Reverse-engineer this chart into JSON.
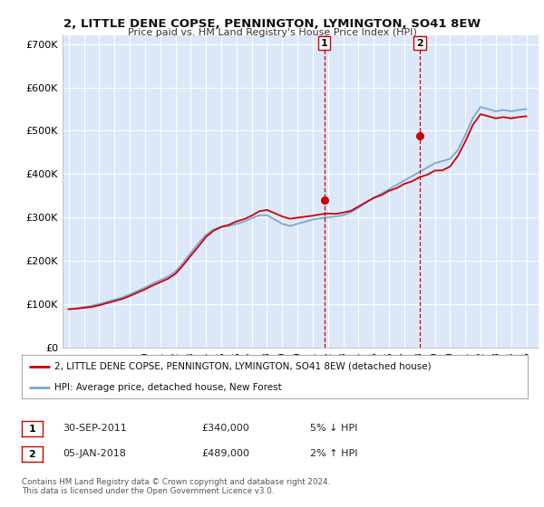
{
  "title": "2, LITTLE DENE COPSE, PENNINGTON, LYMINGTON, SO41 8EW",
  "subtitle": "Price paid vs. HM Land Registry's House Price Index (HPI)",
  "legend_label_red": "2, LITTLE DENE COPSE, PENNINGTON, LYMINGTON, SO41 8EW (detached house)",
  "legend_label_blue": "HPI: Average price, detached house, New Forest",
  "annotation1_date": "30-SEP-2011",
  "annotation1_price": "£340,000",
  "annotation1_hpi": "5% ↓ HPI",
  "annotation2_date": "05-JAN-2018",
  "annotation2_price": "£489,000",
  "annotation2_hpi": "2% ↑ HPI",
  "footer": "Contains HM Land Registry data © Crown copyright and database right 2024.\nThis data is licensed under the Open Government Licence v3.0.",
  "ylim": [
    0,
    720000
  ],
  "yticks": [
    0,
    100000,
    200000,
    300000,
    400000,
    500000,
    600000,
    700000
  ],
  "ytick_labels": [
    "£0",
    "£100K",
    "£200K",
    "£300K",
    "£400K",
    "£500K",
    "£600K",
    "£700K"
  ],
  "background_color": "#ffffff",
  "plot_bg_color": "#dce8f8",
  "grid_color": "#ffffff",
  "red_color": "#cc0000",
  "blue_color": "#7aa8d2",
  "sale1_x": 2011.75,
  "sale1_y": 340000,
  "sale2_x": 2018.02,
  "sale2_y": 489000,
  "xmin": 1994.6,
  "xmax": 2025.8,
  "years_hpi": [
    1995.0,
    1995.5,
    1996.0,
    1996.5,
    1997.0,
    1997.5,
    1998.0,
    1998.5,
    1999.0,
    1999.5,
    2000.0,
    2000.5,
    2001.0,
    2001.5,
    2002.0,
    2002.5,
    2003.0,
    2003.5,
    2004.0,
    2004.5,
    2005.0,
    2005.5,
    2006.0,
    2006.5,
    2007.0,
    2007.5,
    2008.0,
    2008.5,
    2009.0,
    2009.5,
    2010.0,
    2010.5,
    2011.0,
    2011.5,
    2012.0,
    2012.5,
    2013.0,
    2013.5,
    2014.0,
    2014.5,
    2015.0,
    2015.5,
    2016.0,
    2016.5,
    2017.0,
    2017.5,
    2018.0,
    2018.5,
    2019.0,
    2019.5,
    2020.0,
    2020.5,
    2021.0,
    2021.5,
    2022.0,
    2022.5,
    2023.0,
    2023.5,
    2024.0,
    2024.5,
    2025.0
  ],
  "hpi_values": [
    88000,
    90000,
    93000,
    96000,
    100000,
    105000,
    110000,
    115000,
    122000,
    130000,
    138000,
    147000,
    155000,
    163000,
    175000,
    195000,
    218000,
    240000,
    260000,
    272000,
    278000,
    280000,
    285000,
    290000,
    298000,
    305000,
    305000,
    295000,
    285000,
    280000,
    285000,
    290000,
    295000,
    298000,
    300000,
    302000,
    305000,
    312000,
    322000,
    335000,
    345000,
    355000,
    365000,
    375000,
    385000,
    395000,
    405000,
    415000,
    425000,
    430000,
    435000,
    455000,
    490000,
    530000,
    555000,
    550000,
    545000,
    548000,
    545000,
    548000,
    550000
  ],
  "red_multipliers": [
    1.0,
    0.99,
    0.98,
    0.97,
    0.97,
    0.97,
    0.97,
    0.97,
    0.97,
    0.97,
    0.97,
    0.97,
    0.97,
    0.97,
    0.97,
    0.97,
    0.97,
    0.97,
    0.98,
    0.99,
    1.0,
    1.01,
    1.02,
    1.02,
    1.02,
    1.03,
    1.04,
    1.05,
    1.06,
    1.06,
    1.05,
    1.04,
    1.03,
    1.03,
    1.03,
    1.02,
    1.02,
    1.01,
    1.01,
    1.0,
    1.0,
    0.99,
    0.99,
    0.98,
    0.98,
    0.97,
    0.97,
    0.96,
    0.96,
    0.95,
    0.96,
    0.97,
    0.97,
    0.97,
    0.97,
    0.97,
    0.97,
    0.97,
    0.97,
    0.97,
    0.97
  ]
}
